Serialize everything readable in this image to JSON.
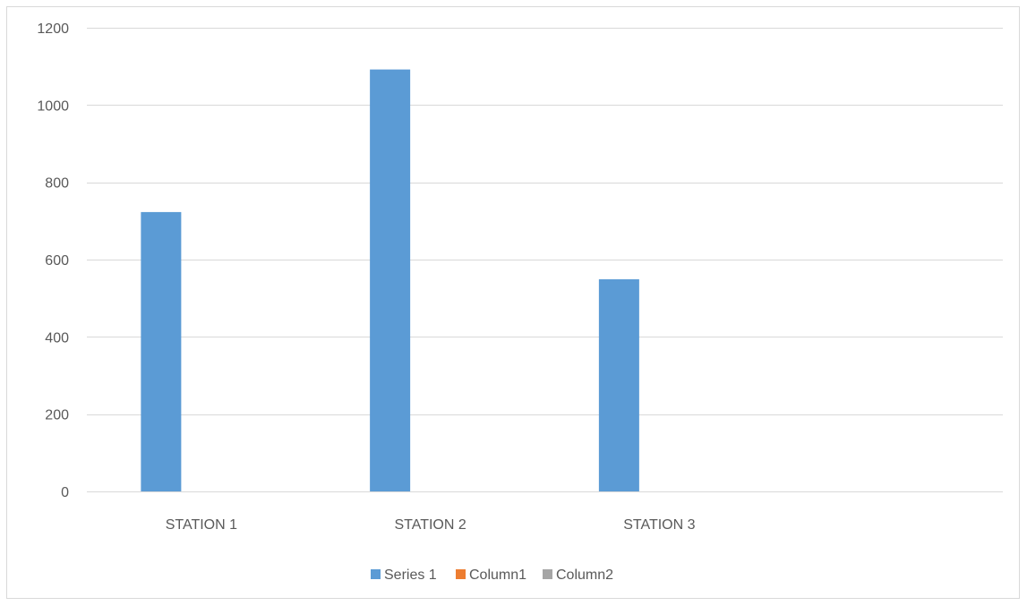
{
  "chart_data": {
    "type": "bar",
    "categories": [
      "STATION 1",
      "STATION 2",
      "STATION 3",
      ""
    ],
    "series": [
      {
        "name": "Series 1",
        "values": [
          723,
          1092,
          549,
          null
        ],
        "color": "#5b9bd5"
      },
      {
        "name": "Column1",
        "values": [
          null,
          null,
          null,
          null
        ],
        "color": "#ed7d31"
      },
      {
        "name": "Column2",
        "values": [
          null,
          null,
          null,
          null
        ],
        "color": "#a5a5a5"
      }
    ],
    "ylim": [
      0,
      1200
    ],
    "yticks": [
      0,
      200,
      400,
      600,
      800,
      1000,
      1200
    ],
    "grid": true,
    "legend": "bottom"
  }
}
